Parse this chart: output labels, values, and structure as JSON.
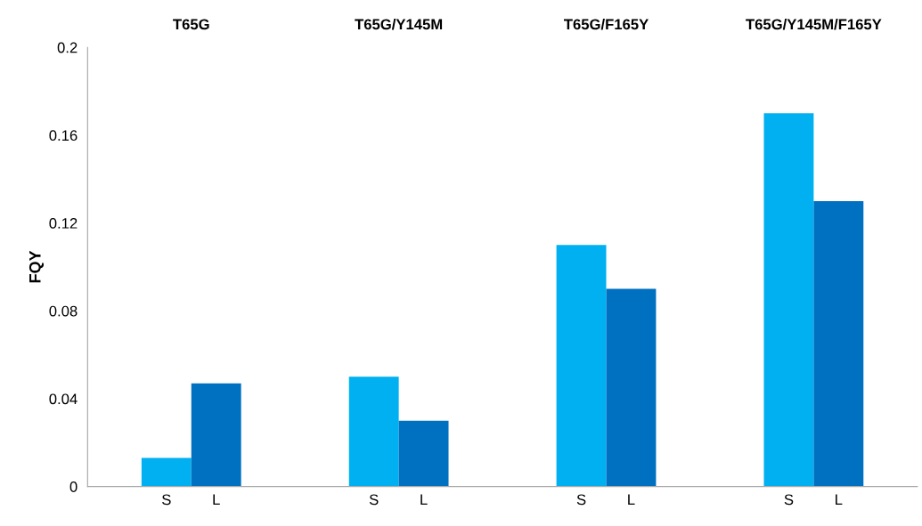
{
  "chart_data": {
    "type": "bar",
    "ylabel": "FQY",
    "categories": [
      "T65G",
      "T65G/Y145M",
      "T65G/F165Y",
      "T65G/Y145M/F165Y"
    ],
    "series": [
      {
        "name": "S",
        "color": "#00b0f0",
        "values": [
          0.013,
          0.05,
          0.11,
          0.17
        ]
      },
      {
        "name": "L",
        "color": "#0070c0",
        "values": [
          0.047,
          0.03,
          0.09,
          0.13
        ]
      }
    ],
    "ylim": [
      0,
      0.2
    ],
    "yticks": [
      0,
      0.04,
      0.08,
      0.12,
      0.16,
      0.2
    ],
    "grid": false,
    "legend": false
  }
}
